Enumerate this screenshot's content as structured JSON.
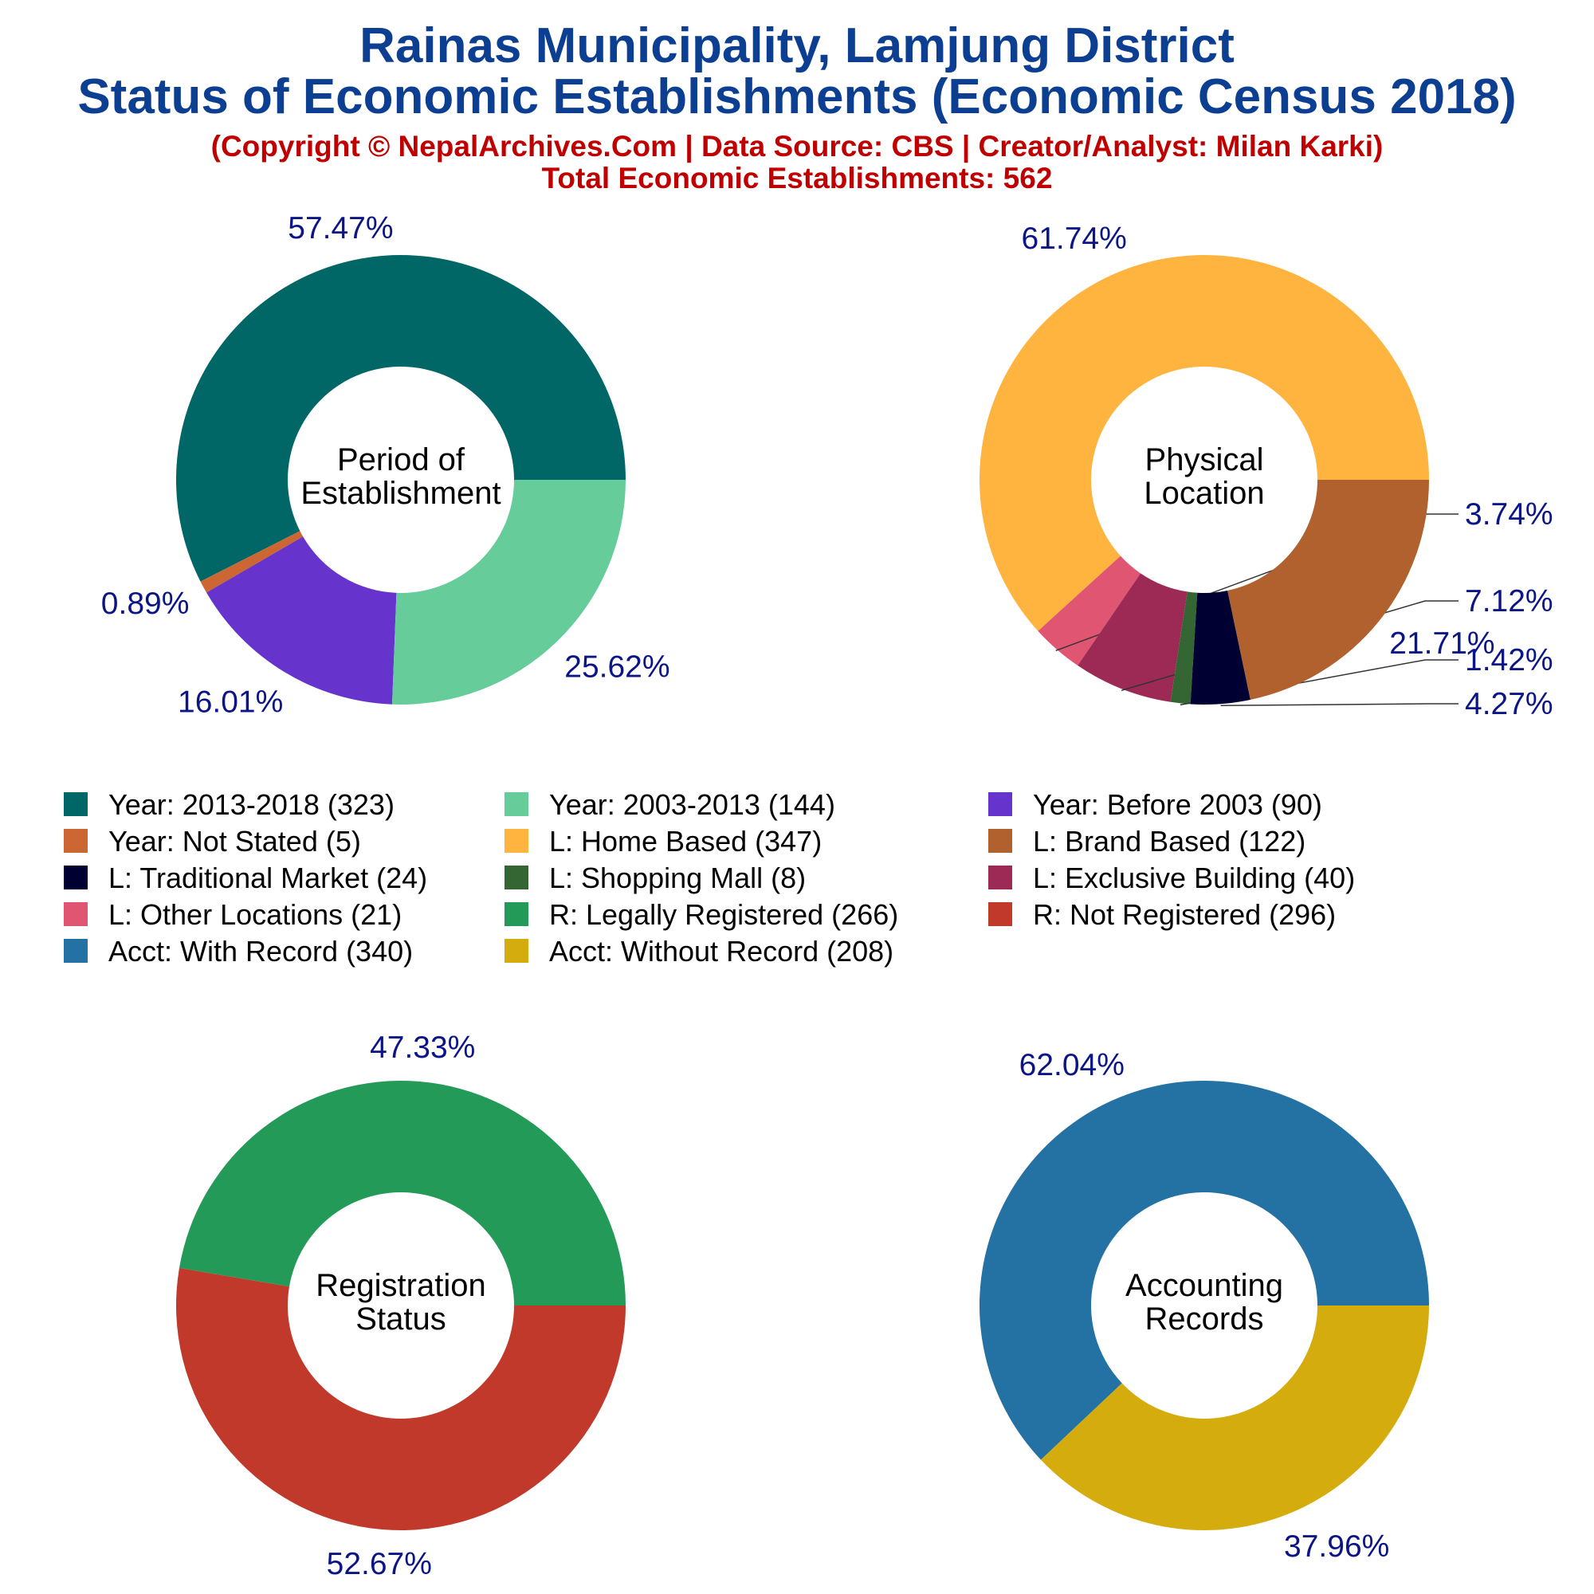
{
  "header": {
    "title_line1": "Rainas Municipality, Lamjung District",
    "title_line2": "Status of Economic Establishments (Economic Census 2018)",
    "copyright": "(Copyright © NepalArchives.Com | Data Source: CBS | Creator/Analyst: Milan Karki)",
    "total": "Total Economic Establishments: 562"
  },
  "chart_data": [
    {
      "type": "pie",
      "center_label": [
        "Period of",
        "Establishment"
      ],
      "categories": [
        "Year: 2013-2018",
        "Year: Not Stated",
        "Year: Before 2003",
        "Year: 2003-2013"
      ],
      "values": [
        323,
        5,
        90,
        144
      ],
      "percent_labels": [
        "57.47%",
        "0.89%",
        "16.01%",
        "25.62%"
      ],
      "colors": [
        "#006666",
        "#cc6633",
        "#6633cc",
        "#66cc99"
      ]
    },
    {
      "type": "pie",
      "center_label": [
        "Physical",
        "Location"
      ],
      "categories": [
        "L: Home Based",
        "L: Other Locations",
        "L: Exclusive Building",
        "L: Shopping Mall",
        "L: Traditional Market",
        "L: Brand Based"
      ],
      "values": [
        347,
        21,
        40,
        8,
        24,
        122
      ],
      "percent_labels": [
        "61.74%",
        "3.74%",
        "7.12%",
        "1.42%",
        "4.27%",
        "21.71%"
      ],
      "colors": [
        "#ffb43f",
        "#e05571",
        "#9c2a55",
        "#336633",
        "#000033",
        "#b0612d"
      ]
    },
    {
      "type": "pie",
      "center_label": [
        "Registration",
        "Status"
      ],
      "categories": [
        "R: Legally Registered",
        "R: Not Registered"
      ],
      "values": [
        266,
        296
      ],
      "percent_labels": [
        "47.33%",
        "52.67%"
      ],
      "colors": [
        "#249a58",
        "#c0392b"
      ]
    },
    {
      "type": "pie",
      "center_label": [
        "Accounting",
        "Records"
      ],
      "categories": [
        "Acct: With Record",
        "Acct: Without Record"
      ],
      "values": [
        340,
        208
      ],
      "percent_labels": [
        "62.04%",
        "37.96%"
      ],
      "colors": [
        "#2471a3",
        "#d4ac0d"
      ]
    }
  ],
  "legend": [
    {
      "label": "Year: 2013-2018 (323)",
      "color": "#006666"
    },
    {
      "label": "Year: 2003-2013 (144)",
      "color": "#66cc99"
    },
    {
      "label": "Year: Before 2003 (90)",
      "color": "#6633cc"
    },
    {
      "label": "Year: Not Stated (5)",
      "color": "#cc6633"
    },
    {
      "label": "L: Home Based (347)",
      "color": "#ffb43f"
    },
    {
      "label": "L: Brand Based (122)",
      "color": "#b0612d"
    },
    {
      "label": "L: Traditional Market (24)",
      "color": "#000033"
    },
    {
      "label": "L: Shopping Mall (8)",
      "color": "#336633"
    },
    {
      "label": "L: Exclusive Building (40)",
      "color": "#9c2a55"
    },
    {
      "label": "L: Other Locations (21)",
      "color": "#e05571"
    },
    {
      "label": "R: Legally Registered (266)",
      "color": "#249a58"
    },
    {
      "label": "R: Not Registered (296)",
      "color": "#c0392b"
    },
    {
      "label": "Acct: With Record (340)",
      "color": "#2471a3"
    },
    {
      "label": "Acct: Without Record (208)",
      "color": "#d4ac0d"
    }
  ]
}
